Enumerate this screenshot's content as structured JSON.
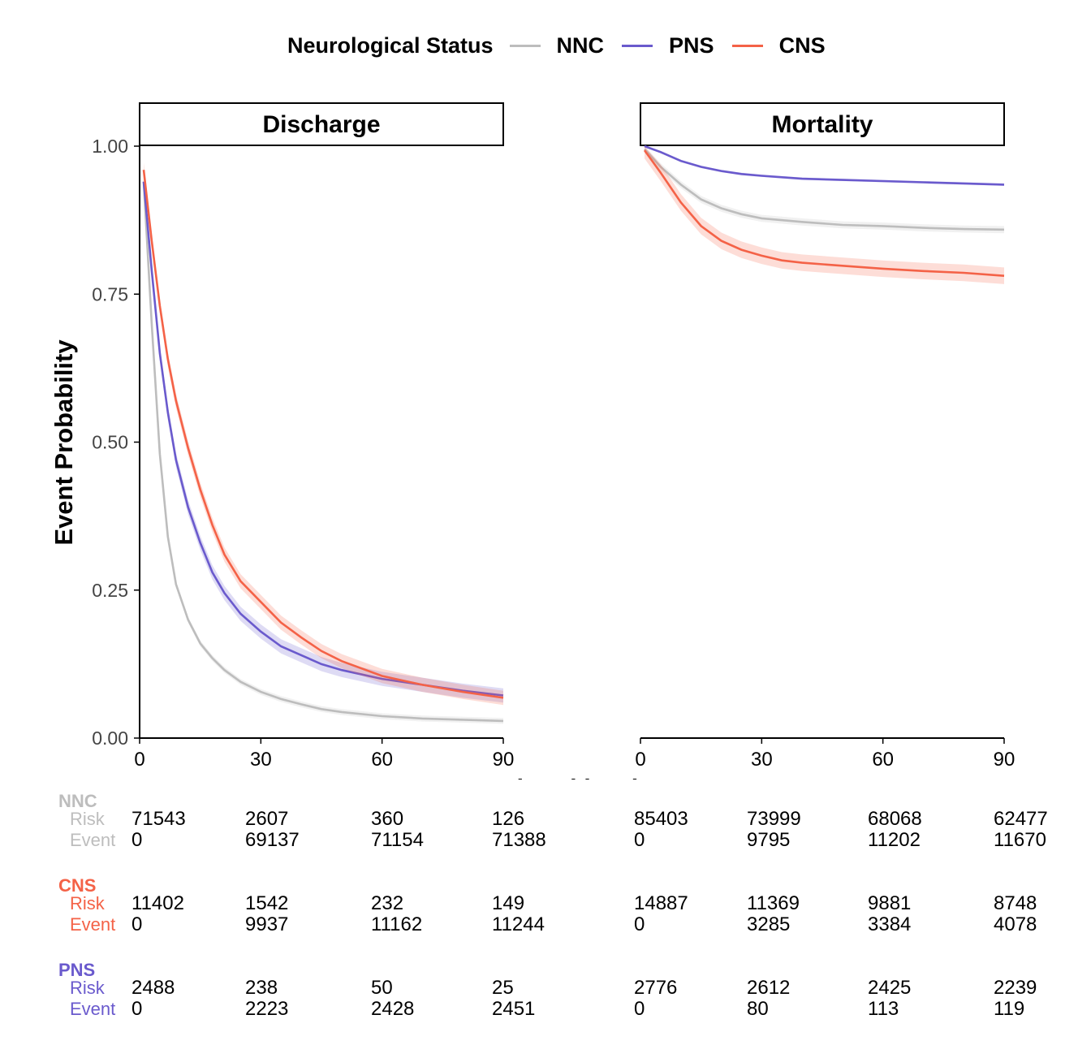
{
  "legend": {
    "title": "Neurological Status",
    "items": [
      {
        "label": "NNC",
        "color": "#bdbdbd"
      },
      {
        "label": "PNS",
        "color": "#6a5acd"
      },
      {
        "label": "CNS",
        "color": "#f46247"
      }
    ]
  },
  "chart_data": {
    "type": "line",
    "ylabel": "Event Probability",
    "xlabel": "Time (days)",
    "ylim": [
      0,
      1
    ],
    "yticks": [
      "0.00",
      "0.25",
      "0.50",
      "0.75",
      "1.00"
    ],
    "xlim": [
      0,
      90
    ],
    "xticks": [
      "0",
      "30",
      "60",
      "90"
    ],
    "grid": false,
    "legend_position": "top",
    "panels": [
      {
        "title": "Discharge",
        "series": [
          {
            "name": "NNC",
            "color": "#bdbdbd",
            "points": [
              [
                1,
                0.94
              ],
              [
                3,
                0.7
              ],
              [
                5,
                0.48
              ],
              [
                7,
                0.34
              ],
              [
                9,
                0.26
              ],
              [
                12,
                0.2
              ],
              [
                15,
                0.16
              ],
              [
                18,
                0.135
              ],
              [
                21,
                0.115
              ],
              [
                25,
                0.095
              ],
              [
                30,
                0.078
              ],
              [
                35,
                0.066
              ],
              [
                40,
                0.057
              ],
              [
                45,
                0.049
              ],
              [
                50,
                0.044
              ],
              [
                60,
                0.037
              ],
              [
                70,
                0.033
              ],
              [
                80,
                0.031
              ],
              [
                90,
                0.029
              ]
            ],
            "ci": 0.005
          },
          {
            "name": "PNS",
            "color": "#6a5acd",
            "points": [
              [
                1,
                0.94
              ],
              [
                3,
                0.79
              ],
              [
                5,
                0.65
              ],
              [
                7,
                0.55
              ],
              [
                9,
                0.47
              ],
              [
                12,
                0.39
              ],
              [
                15,
                0.33
              ],
              [
                18,
                0.28
              ],
              [
                21,
                0.245
              ],
              [
                25,
                0.21
              ],
              [
                30,
                0.18
              ],
              [
                35,
                0.155
              ],
              [
                40,
                0.14
              ],
              [
                45,
                0.125
              ],
              [
                50,
                0.115
              ],
              [
                60,
                0.1
              ],
              [
                70,
                0.09
              ],
              [
                80,
                0.08
              ],
              [
                90,
                0.072
              ]
            ],
            "ci": 0.012
          },
          {
            "name": "CNS",
            "color": "#f46247",
            "points": [
              [
                1,
                0.96
              ],
              [
                3,
                0.84
              ],
              [
                5,
                0.73
              ],
              [
                7,
                0.64
              ],
              [
                9,
                0.57
              ],
              [
                12,
                0.49
              ],
              [
                15,
                0.42
              ],
              [
                18,
                0.36
              ],
              [
                21,
                0.31
              ],
              [
                25,
                0.265
              ],
              [
                30,
                0.23
              ],
              [
                35,
                0.195
              ],
              [
                40,
                0.17
              ],
              [
                45,
                0.147
              ],
              [
                50,
                0.13
              ],
              [
                60,
                0.105
              ],
              [
                70,
                0.09
              ],
              [
                80,
                0.078
              ],
              [
                90,
                0.068
              ]
            ],
            "ci": 0.012
          }
        ]
      },
      {
        "title": "Mortality",
        "series": [
          {
            "name": "NNC",
            "color": "#bdbdbd",
            "points": [
              [
                1,
                0.995
              ],
              [
                5,
                0.965
              ],
              [
                10,
                0.935
              ],
              [
                15,
                0.91
              ],
              [
                20,
                0.895
              ],
              [
                25,
                0.885
              ],
              [
                30,
                0.878
              ],
              [
                40,
                0.872
              ],
              [
                50,
                0.867
              ],
              [
                60,
                0.865
              ],
              [
                70,
                0.862
              ],
              [
                80,
                0.86
              ],
              [
                90,
                0.859
              ]
            ],
            "ci": 0.006
          },
          {
            "name": "PNS",
            "color": "#6a5acd",
            "points": [
              [
                1,
                1.0
              ],
              [
                5,
                0.99
              ],
              [
                10,
                0.975
              ],
              [
                15,
                0.965
              ],
              [
                20,
                0.958
              ],
              [
                25,
                0.953
              ],
              [
                30,
                0.95
              ],
              [
                40,
                0.945
              ],
              [
                50,
                0.943
              ],
              [
                60,
                0.941
              ],
              [
                70,
                0.939
              ],
              [
                80,
                0.937
              ],
              [
                90,
                0.935
              ]
            ],
            "ci": 0.002
          },
          {
            "name": "CNS",
            "color": "#f46247",
            "points": [
              [
                1,
                0.993
              ],
              [
                5,
                0.955
              ],
              [
                10,
                0.905
              ],
              [
                15,
                0.865
              ],
              [
                20,
                0.84
              ],
              [
                25,
                0.825
              ],
              [
                30,
                0.815
              ],
              [
                35,
                0.807
              ],
              [
                40,
                0.803
              ],
              [
                50,
                0.798
              ],
              [
                60,
                0.793
              ],
              [
                70,
                0.789
              ],
              [
                80,
                0.786
              ],
              [
                90,
                0.781
              ]
            ],
            "ci": 0.014
          }
        ]
      }
    ]
  },
  "risk_table": {
    "groups": [
      {
        "name": "NNC",
        "color": "#bdbdbd",
        "rows": [
          {
            "label": "Risk",
            "discharge": [
              "71543",
              "2607",
              "360",
              "126"
            ],
            "mortality": [
              "85403",
              "73999",
              "68068",
              "62477"
            ]
          },
          {
            "label": "Event",
            "discharge": [
              "0",
              "69137",
              "71154",
              "71388"
            ],
            "mortality": [
              "0",
              "9795",
              "11202",
              "11670"
            ]
          }
        ]
      },
      {
        "name": "CNS",
        "color": "#f46247",
        "rows": [
          {
            "label": "Risk",
            "discharge": [
              "11402",
              "1542",
              "232",
              "149"
            ],
            "mortality": [
              "14887",
              "11369",
              "9881",
              "8748"
            ]
          },
          {
            "label": "Event",
            "discharge": [
              "0",
              "9937",
              "11162",
              "11244"
            ],
            "mortality": [
              "0",
              "3285",
              "3384",
              "4078"
            ]
          }
        ]
      },
      {
        "name": "PNS",
        "color": "#6a5acd",
        "rows": [
          {
            "label": "Risk",
            "discharge": [
              "2488",
              "238",
              "50",
              "25"
            ],
            "mortality": [
              "2776",
              "2612",
              "2425",
              "2239"
            ]
          },
          {
            "label": "Event",
            "discharge": [
              "0",
              "2223",
              "2428",
              "2451"
            ],
            "mortality": [
              "0",
              "80",
              "113",
              "119"
            ]
          }
        ]
      }
    ]
  }
}
